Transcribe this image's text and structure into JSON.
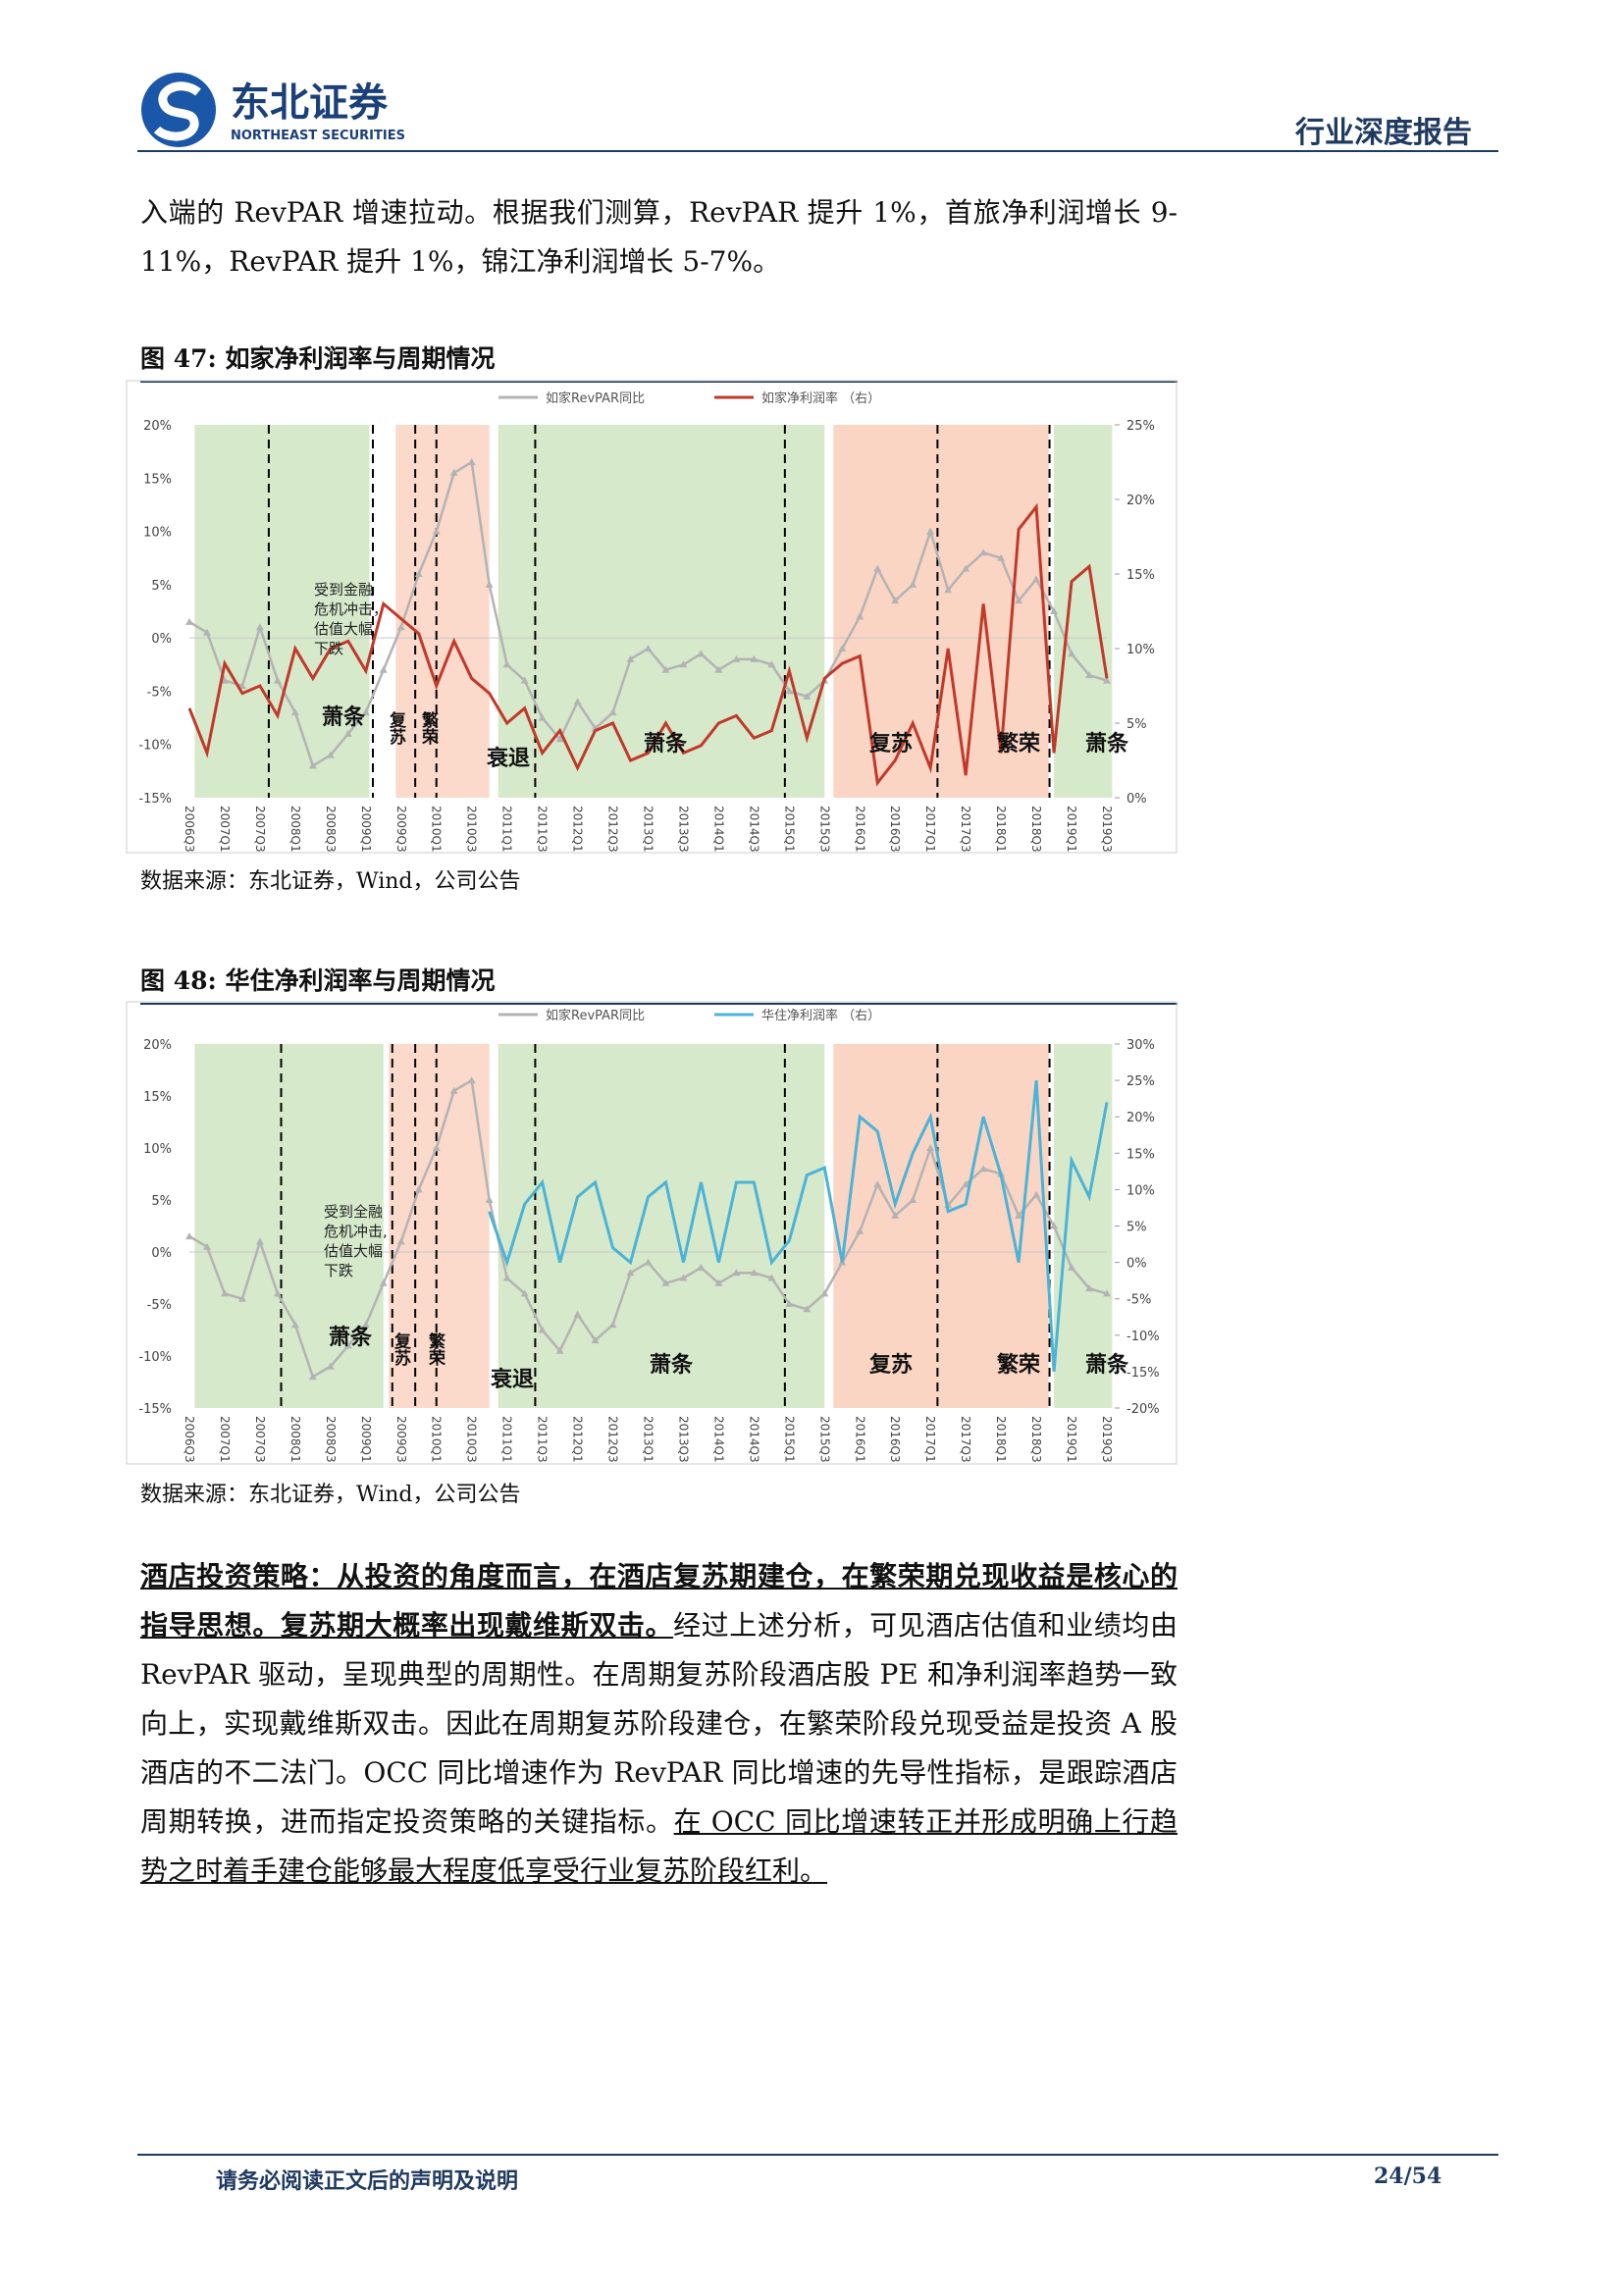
{
  "header": {
    "company": "东北证券",
    "company_en": "NORTHEAST SECURITIES",
    "report_type": "行业深度报告"
  },
  "intro": "入端的 RevPAR 增速拉动。根据我们测算，RevPAR 提升 1%，首旅净利润增长 9-11%，RevPAR 提升 1%，锦江净利润增长 5-7%。",
  "charts": [
    {
      "type": "line",
      "figure_label": "图 47:",
      "title": "如家净利润率与周期情况",
      "source": "数据来源：东北证券，Wind，公司公告",
      "categories": [
        "2006Q3",
        null,
        "2007Q1",
        null,
        "2007Q3",
        null,
        "2008Q1",
        null,
        "2008Q3",
        null,
        "2009Q1",
        null,
        "2009Q3",
        null,
        "2010Q1",
        null,
        "2010Q3",
        null,
        "2011Q1",
        null,
        "2011Q3",
        null,
        "2012Q1",
        null,
        "2012Q3",
        null,
        "2013Q1",
        null,
        "2013Q3",
        null,
        "2014Q1",
        null,
        "2014Q3",
        null,
        "2015Q1",
        null,
        "2015Q3",
        null,
        "2016Q1",
        null,
        "2016Q3",
        null,
        "2017Q1",
        null,
        "2017Q3",
        null,
        "2018Q1",
        null,
        "2018Q3",
        null,
        "2019Q1",
        null,
        "2019Q3"
      ],
      "series": [
        {
          "name": "如家RevPAR同比",
          "color": "#b3b3b3",
          "marker": "triangle",
          "values": [
            1.5,
            0.5,
            -4,
            -4.5,
            1,
            -4,
            -7,
            -12,
            -11,
            -9,
            -7,
            -3,
            1,
            6,
            10,
            15.5,
            16.5,
            5,
            -2.5,
            -4,
            -7.5,
            -9.5,
            -6,
            -8.5,
            -7,
            -2,
            -1,
            -3,
            -2.5,
            -1.5,
            -3,
            -2,
            -2,
            -2.5,
            -5,
            -5.5,
            -4,
            -1,
            2,
            6.5,
            3.5,
            5,
            10,
            4.5,
            6.5,
            8,
            7.5,
            3.5,
            5.5,
            2.5,
            -1.5,
            -3.5,
            -4
          ]
        },
        {
          "name": "如家净利润率 （右）",
          "color": "#c0392b",
          "axis": "y2",
          "values": [
            6,
            3,
            9,
            7,
            7.5,
            5.5,
            10,
            8,
            10,
            10.5,
            8.5,
            13,
            12,
            11,
            7.5,
            10.5,
            8,
            7,
            5,
            6,
            3,
            4.5,
            2,
            4.5,
            5,
            2.5,
            3,
            5,
            3,
            3.5,
            5,
            5.5,
            4,
            4.5,
            8.5,
            4,
            8,
            9,
            9.5,
            1,
            2.5,
            5,
            2,
            10,
            1.5,
            13,
            3,
            18,
            19.5,
            3,
            14.5,
            15.5,
            8
          ]
        }
      ],
      "ylim": [
        -15,
        20
      ],
      "yticks": [
        {
          "value": -15,
          "label": "-15%"
        },
        {
          "value": -10,
          "label": "-10%"
        },
        {
          "value": -5,
          "label": "-5%"
        },
        {
          "value": 0,
          "label": "0%"
        },
        {
          "value": 5,
          "label": "5%"
        },
        {
          "value": 10,
          "label": "10%"
        },
        {
          "value": 15,
          "label": "15%"
        },
        {
          "value": 20,
          "label": "20%"
        }
      ],
      "y2lim": [
        0,
        25
      ],
      "y2ticks": [
        {
          "value": 0,
          "label": "0%"
        },
        {
          "value": 5,
          "label": "5%"
        },
        {
          "value": 10,
          "label": "10%"
        },
        {
          "value": 15,
          "label": "15%"
        },
        {
          "value": 20,
          "label": "20%"
        },
        {
          "value": 25,
          "label": "25%"
        }
      ],
      "annotations": [
        {
          "text": "萧条"
        },
        {
          "text": "复苏"
        },
        {
          "text": "繁荣"
        },
        {
          "text": "衰退"
        },
        {
          "text": "萧条"
        },
        {
          "text": "复苏"
        },
        {
          "text": "繁荣"
        },
        {
          "text": "萧条"
        },
        {
          "lines": [
            "受到金融",
            "危机冲击，",
            "估值大幅",
            "下跌"
          ]
        }
      ]
    },
    {
      "type": "line",
      "figure_label": "图 48:",
      "title": "华住净利润率与周期情况",
      "source": "数据来源：东北证券，Wind，公司公告",
      "categories": [
        "2006Q3",
        null,
        "2007Q1",
        null,
        "2007Q3",
        null,
        "2008Q1",
        null,
        "2008Q3",
        null,
        "2009Q1",
        null,
        "2009Q3",
        null,
        "2010Q1",
        null,
        "2010Q3",
        null,
        "2011Q1",
        null,
        "2011Q3",
        null,
        "2012Q1",
        null,
        "2012Q3",
        null,
        "2013Q1",
        null,
        "2013Q3",
        null,
        "2014Q1",
        null,
        "2014Q3",
        null,
        "2015Q1",
        null,
        "2015Q3",
        null,
        "2016Q1",
        null,
        "2016Q3",
        null,
        "2017Q1",
        null,
        "2017Q3",
        null,
        "2018Q1",
        null,
        "2018Q3",
        null,
        "2019Q1",
        null,
        "2019Q3"
      ],
      "series": [
        {
          "name": "如家RevPAR同比",
          "color": "#b3b3b3",
          "marker": "triangle",
          "values": [
            1.5,
            0.5,
            -4,
            -4.5,
            1,
            -4,
            -7,
            -12,
            -11,
            -9,
            -7,
            -3,
            1,
            6,
            10,
            15.5,
            16.5,
            5,
            -2.5,
            -4,
            -7.5,
            -9.5,
            -6,
            -8.5,
            -7,
            -2,
            -1,
            -3,
            -2.5,
            -1.5,
            -3,
            -2,
            -2,
            -2.5,
            -5,
            -5.5,
            -4,
            -1,
            2,
            6.5,
            3.5,
            5,
            10,
            4.5,
            6.5,
            8,
            7.5,
            3.5,
            5.5,
            2.5,
            -1.5,
            -3.5,
            -4
          ]
        },
        {
          "name": "华住净利润率 （右）",
          "color": "#4bb3d6",
          "axis": "y2",
          "values": [
            null,
            null,
            null,
            null,
            null,
            null,
            null,
            null,
            null,
            null,
            null,
            null,
            null,
            null,
            null,
            null,
            null,
            7,
            0,
            8,
            11,
            0,
            9,
            11,
            2,
            0,
            9,
            11,
            0,
            11,
            0,
            11,
            11,
            0,
            3,
            12,
            13,
            0,
            20,
            18,
            8,
            15,
            20,
            7,
            8,
            20,
            12,
            0,
            25,
            -15,
            14,
            9,
            22
          ]
        }
      ],
      "ylim": [
        -15,
        20
      ],
      "yticks": [
        {
          "value": -15,
          "label": "-15%"
        },
        {
          "value": -10,
          "label": "-10%"
        },
        {
          "value": -5,
          "label": "-5%"
        },
        {
          "value": 0,
          "label": "0%"
        },
        {
          "value": 5,
          "label": "5%"
        },
        {
          "value": 10,
          "label": "10%"
        },
        {
          "value": 15,
          "label": "15%"
        },
        {
          "value": 20,
          "label": "20%"
        }
      ],
      "y2lim": [
        -20,
        30
      ],
      "y2ticks": [
        {
          "value": -20,
          "label": "-20%"
        },
        {
          "value": -15,
          "label": "-15%"
        },
        {
          "value": -10,
          "label": "-10%"
        },
        {
          "value": -5,
          "label": "-5%"
        },
        {
          "value": 0,
          "label": "0%"
        },
        {
          "value": 5,
          "label": "5%"
        },
        {
          "value": 10,
          "label": "10%"
        },
        {
          "value": 15,
          "label": "15%"
        },
        {
          "value": 20,
          "label": "20%"
        },
        {
          "value": 25,
          "label": "25%"
        },
        {
          "value": 30,
          "label": "30%"
        }
      ],
      "annotations": [
        {
          "text": "萧条"
        },
        {
          "text": "复苏"
        },
        {
          "text": "繁荣"
        },
        {
          "text": "衰退"
        },
        {
          "text": "萧条"
        },
        {
          "text": "复苏"
        },
        {
          "text": "繁荣"
        },
        {
          "text": "萧条"
        },
        {
          "lines": [
            "受到全融",
            "危机冲击,",
            "估值大幅",
            "下跌"
          ]
        }
      ]
    }
  ],
  "strategy": [
    {
      "text": "酒店投资策略：从投资的角度而言，在酒店复苏期建仓，在繁荣期兑现收益是核心的指导思想。复苏期大概率出现戴维斯双击。",
      "bold": true,
      "underline": true
    },
    {
      "text": "经过上述分析，可见酒店估值和业绩均由 RevPAR 驱动，呈现典型的周期性。在周期复苏阶段酒店股 PE 和净利润率趋势一致向上，实现戴维斯双击。因此在周期复苏阶段建仓，在繁荣阶段兑现受益是投资 A 股酒店的不二法门。OCC 同比增速作为 RevPAR 同比增速的先导性指标，是跟踪酒店周期转换，进而指定投资策略的关键指标。",
      "bold": false,
      "underline": false
    },
    {
      "text": "在 OCC 同比增速转正并形成明确上行趋势之时着手建仓能够最大程度低享受行业复苏阶段红利。",
      "bold": false,
      "underline": true
    }
  ],
  "footer": {
    "disclaimer": "请务必阅读正文后的声明及说明",
    "page": "24/54"
  }
}
